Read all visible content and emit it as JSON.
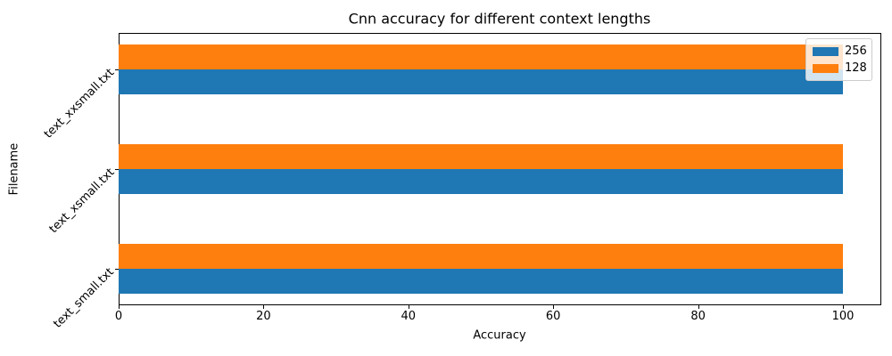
{
  "chart_data": {
    "type": "bar",
    "orientation": "horizontal",
    "title": "Cnn accuracy for different context lengths",
    "xlabel": "Accuracy",
    "ylabel": "Filename",
    "categories": [
      "text_xxsmall.txt",
      "text_xsmall.txt",
      "text_small.txt"
    ],
    "series": [
      {
        "name": "256",
        "color": "#1f77b4",
        "values": [
          100,
          100,
          100
        ]
      },
      {
        "name": "128",
        "color": "#ff7f0e",
        "values": [
          100,
          100,
          100
        ]
      }
    ],
    "xticks": [
      0,
      20,
      40,
      60,
      80,
      100
    ],
    "xlim": [
      0,
      105.3
    ],
    "grid": false,
    "legend_position": "upper right",
    "legend_entries": [
      "256",
      "128"
    ]
  },
  "colors": {
    "series_256": "#1f77b4",
    "series_128": "#ff7f0e",
    "background": "#ffffff",
    "spine": "#000000",
    "legend_border": "#cccccc"
  }
}
